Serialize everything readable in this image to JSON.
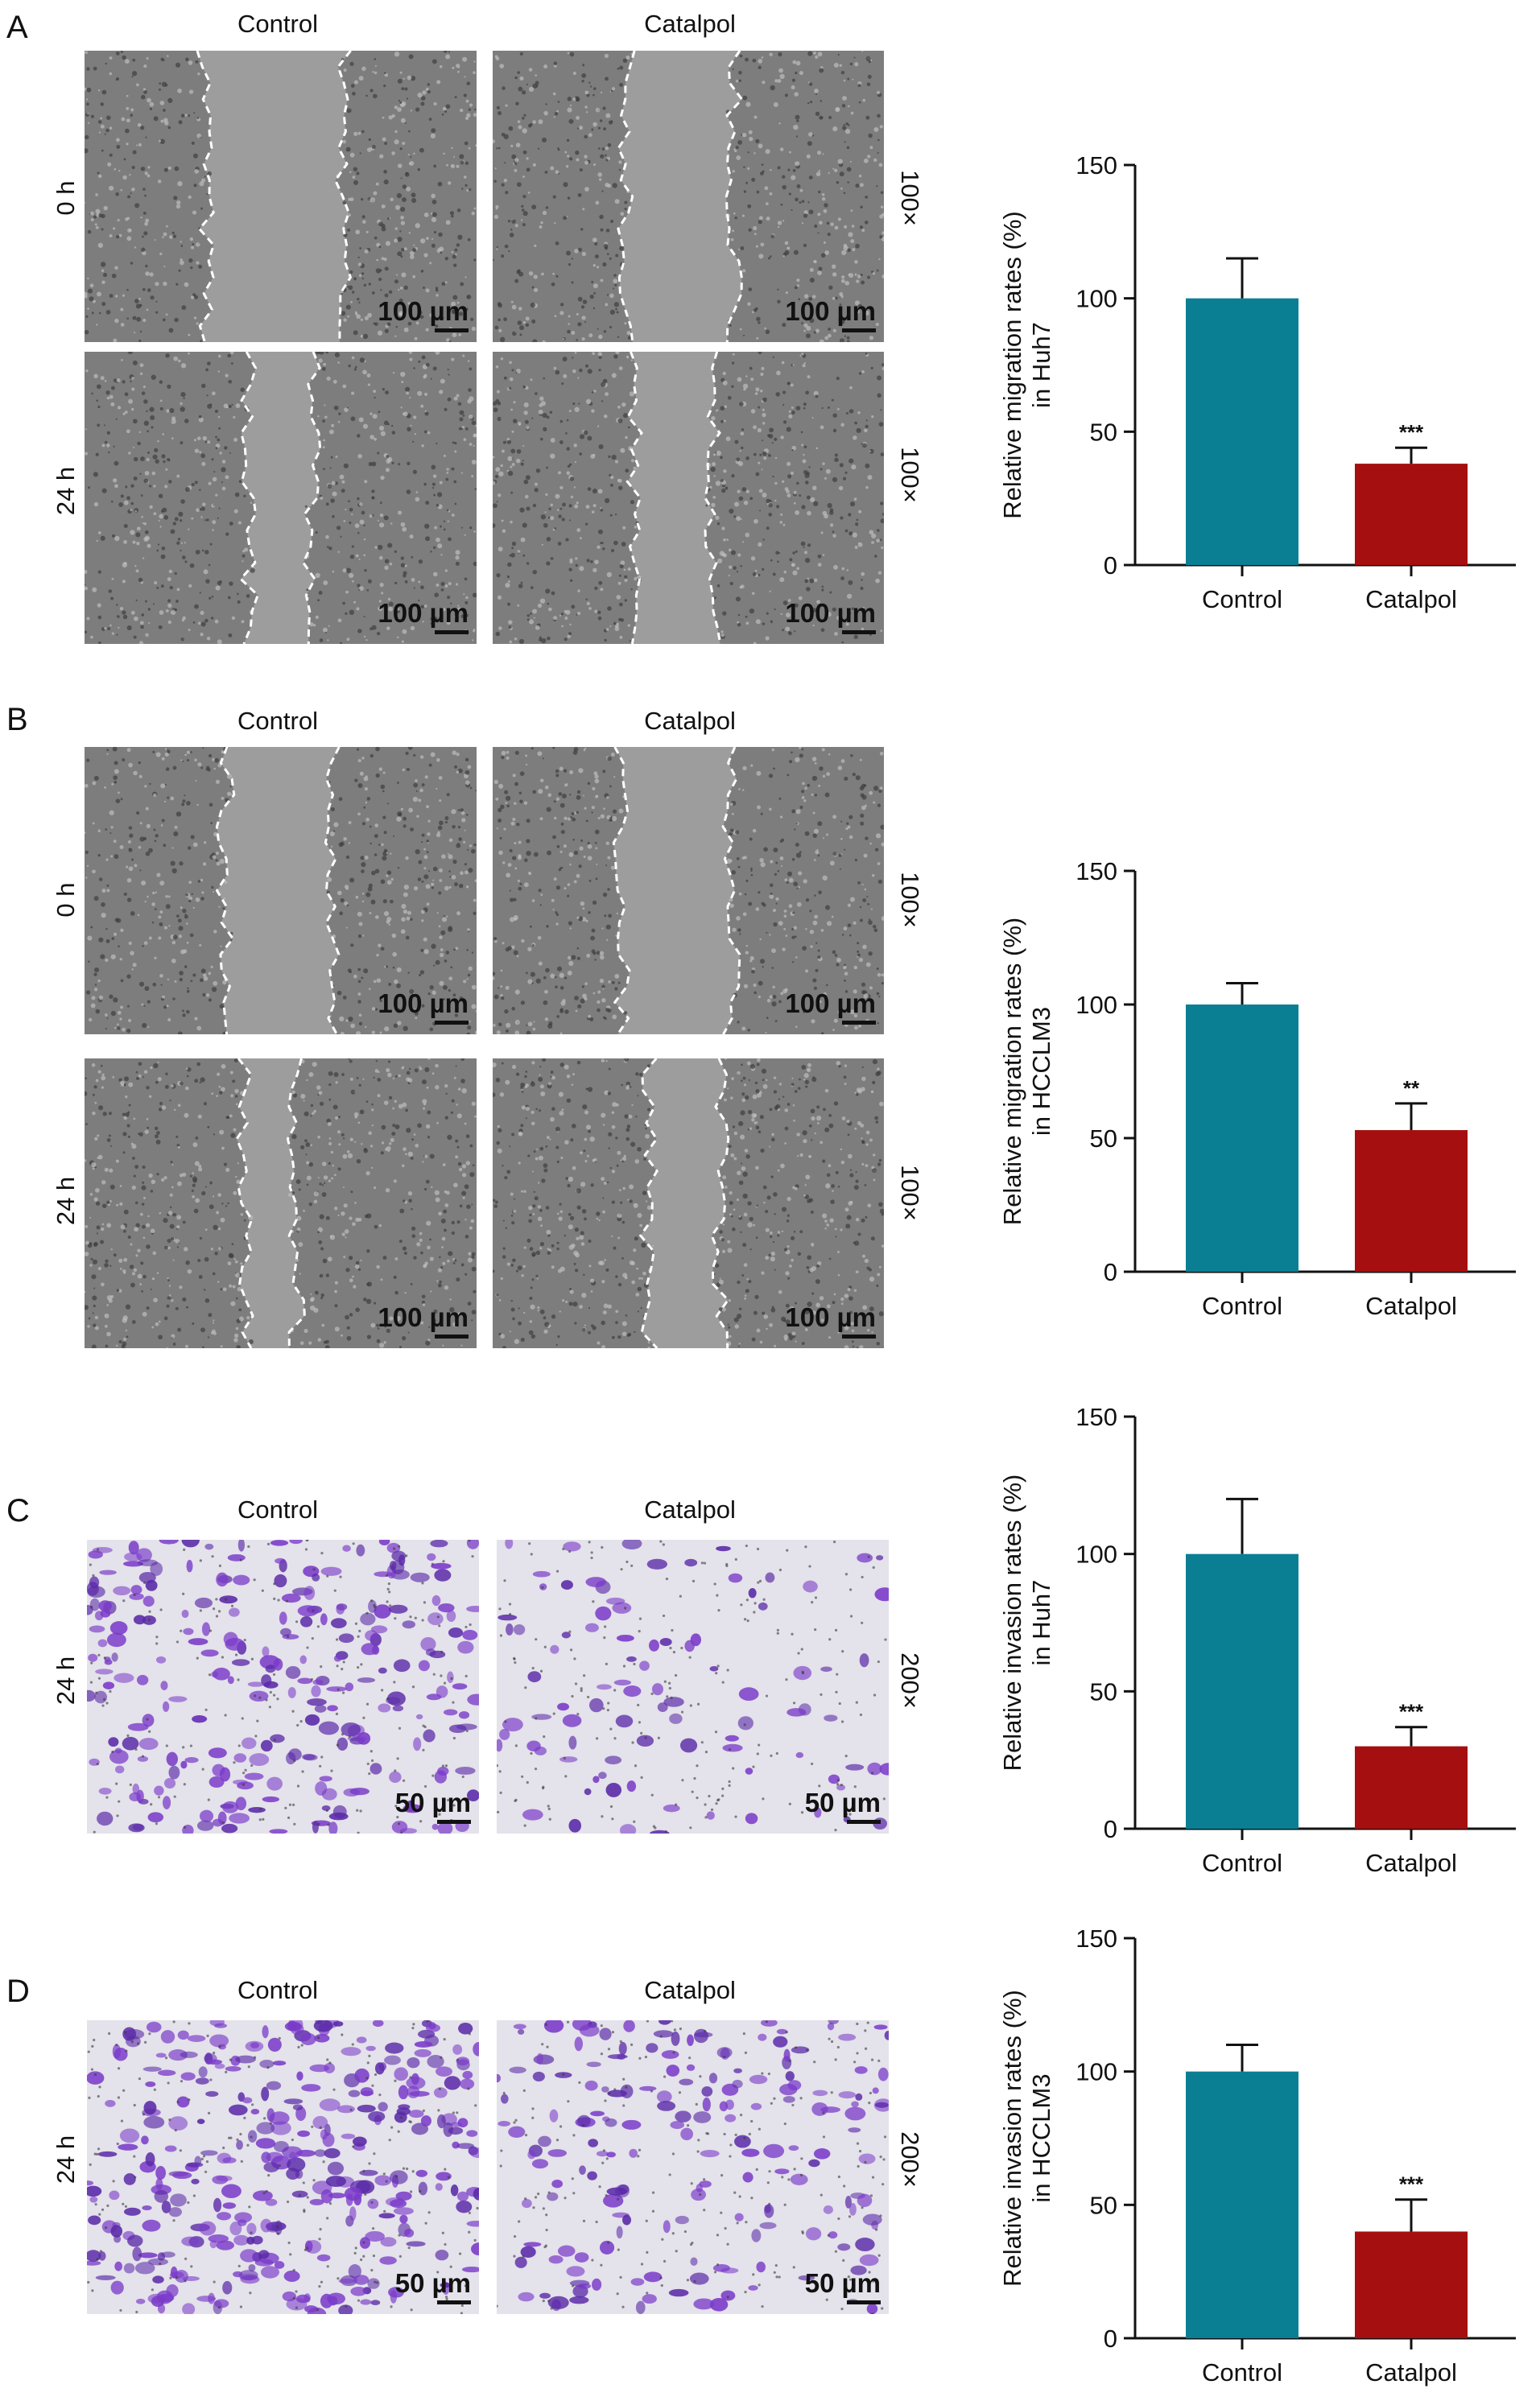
{
  "figure": {
    "column_labels": [
      "Control",
      "Catalpol"
    ],
    "panels": [
      {
        "id": "A",
        "type": "wound",
        "rows": [
          "0 h",
          "24 h"
        ],
        "magnification": "100×",
        "scale": "100 µm"
      },
      {
        "id": "B",
        "type": "wound",
        "rows": [
          "0 h",
          "24 h"
        ],
        "magnification": "100×",
        "scale": "100 µm"
      },
      {
        "id": "C",
        "type": "transwell",
        "rows": [
          "24 h"
        ],
        "magnification": "200×",
        "scale": "50 µm"
      },
      {
        "id": "D",
        "type": "transwell",
        "rows": [
          "24 h"
        ],
        "magnification": "200×",
        "scale": "50 µm"
      }
    ]
  },
  "colors": {
    "control": "#0a7f93",
    "catalpol": "#a50f0f",
    "wound_bg": "#a6a6a6",
    "wound_cells": "#5b5b5b",
    "stain": "#7a3bc9",
    "transwell_bg": "#dfe3e6"
  },
  "chart_data": [
    {
      "type": "bar",
      "panel": "A",
      "categories": [
        "Control",
        "Catalpol"
      ],
      "values": [
        100,
        38
      ],
      "errors": [
        15,
        6
      ],
      "significance": [
        "",
        "***"
      ],
      "ylabel_lines": [
        "Relative migration rates (%)",
        "in Huh7"
      ],
      "ylim": [
        0,
        150
      ],
      "yticks": [
        0,
        50,
        100,
        150
      ]
    },
    {
      "type": "bar",
      "panel": "B",
      "categories": [
        "Control",
        "Catalpol"
      ],
      "values": [
        100,
        53
      ],
      "errors": [
        8,
        10
      ],
      "significance": [
        "",
        "**"
      ],
      "ylabel_lines": [
        "Relative migration rates (%)",
        "in HCCLM3"
      ],
      "ylim": [
        0,
        150
      ],
      "yticks": [
        0,
        50,
        100,
        150
      ]
    },
    {
      "type": "bar",
      "panel": "C",
      "categories": [
        "Control",
        "Catalpol"
      ],
      "values": [
        100,
        30
      ],
      "errors": [
        20,
        7
      ],
      "significance": [
        "",
        "***"
      ],
      "ylabel_lines": [
        "Relative invasion rates (%)",
        "in Huh7"
      ],
      "ylim": [
        0,
        150
      ],
      "yticks": [
        0,
        50,
        100,
        150
      ]
    },
    {
      "type": "bar",
      "panel": "D",
      "categories": [
        "Control",
        "Catalpol"
      ],
      "values": [
        100,
        40
      ],
      "errors": [
        10,
        12
      ],
      "significance": [
        "",
        "***"
      ],
      "ylabel_lines": [
        "Relative invasion rates (%)",
        "in HCCLM3"
      ],
      "ylim": [
        0,
        150
      ],
      "yticks": [
        0,
        50,
        100,
        150
      ]
    }
  ]
}
